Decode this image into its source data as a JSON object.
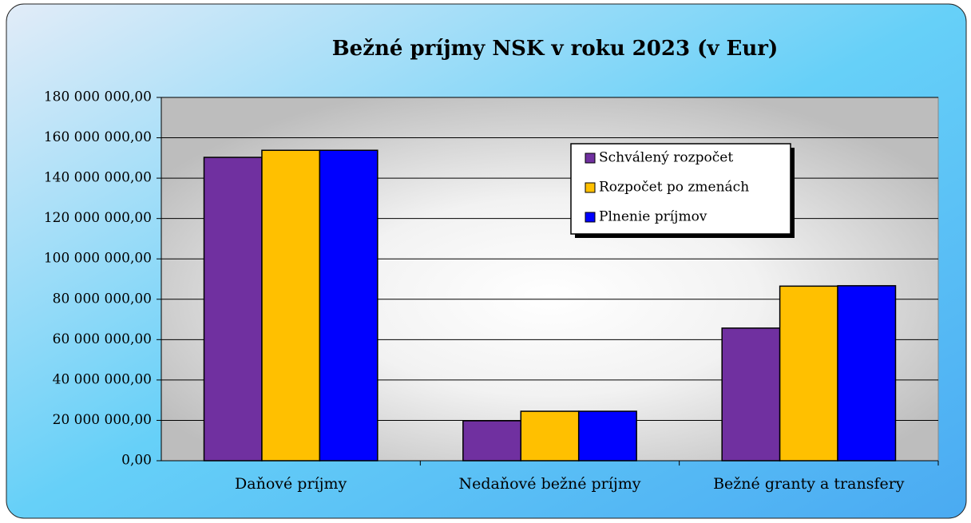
{
  "chart_data": {
    "type": "bar",
    "title": "Bežné príjmy NSK v roku 2023 (v Eur)",
    "categories": [
      "Daňové príjmy",
      "Nedaňové bežné príjmy",
      "Bežné granty a transfery"
    ],
    "series": [
      {
        "name": "Schválený rozpočet",
        "color": "#7030a0",
        "values": [
          150300000,
          19800000,
          65700000
        ]
      },
      {
        "name": "Rozpočet po zmenách",
        "color": "#ffc000",
        "values": [
          153800000,
          24500000,
          86500000
        ]
      },
      {
        "name": "Plnenie príjmov",
        "color": "#0000ff",
        "values": [
          153800000,
          24500000,
          86700000
        ]
      }
    ],
    "ylim": [
      0,
      180000000
    ],
    "yticks": [
      {
        "value": 0,
        "label": "0,00"
      },
      {
        "value": 20000000,
        "label": "20 000 000,00"
      },
      {
        "value": 40000000,
        "label": "40 000 000,00"
      },
      {
        "value": 60000000,
        "label": "60 000 000,00"
      },
      {
        "value": 80000000,
        "label": "80 000 000,00"
      },
      {
        "value": 100000000,
        "label": "100 000 000,00"
      },
      {
        "value": 120000000,
        "label": "120 000 000,00"
      },
      {
        "value": 140000000,
        "label": "140 000 000,00"
      },
      {
        "value": 160000000,
        "label": "160 000 000,00"
      },
      {
        "value": 180000000,
        "label": "180 000 000,00"
      }
    ],
    "grid": true,
    "legend": "upper right"
  }
}
